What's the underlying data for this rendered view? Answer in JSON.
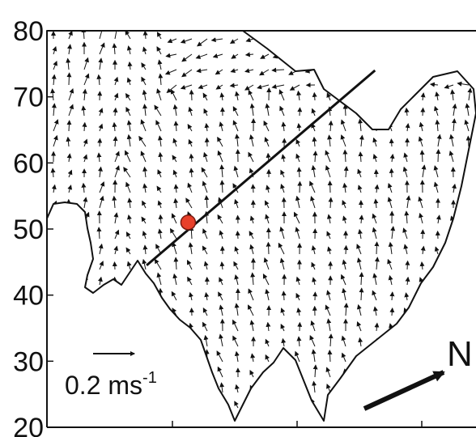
{
  "chart_data": {
    "type": "vector-field",
    "title": "",
    "xlabel": "",
    "ylabel": "",
    "ylim": [
      20,
      80
    ],
    "y_ticks": [
      "20",
      "30",
      "40",
      "50",
      "60",
      "70",
      "80"
    ],
    "grid": false,
    "scale_arrow": {
      "value": 0.2,
      "label_main": "0.2 ms",
      "label_sup": "-1"
    },
    "north_arrow": {
      "label": "N"
    },
    "transect": {
      "start": [
        24,
        44.5
      ],
      "end": [
        79,
        74
      ],
      "marker": [
        34,
        51
      ],
      "marker_color": "#e8402a"
    },
    "colors": {
      "arrows": "#111111",
      "coast": "#111111",
      "axes": "#111111"
    }
  }
}
